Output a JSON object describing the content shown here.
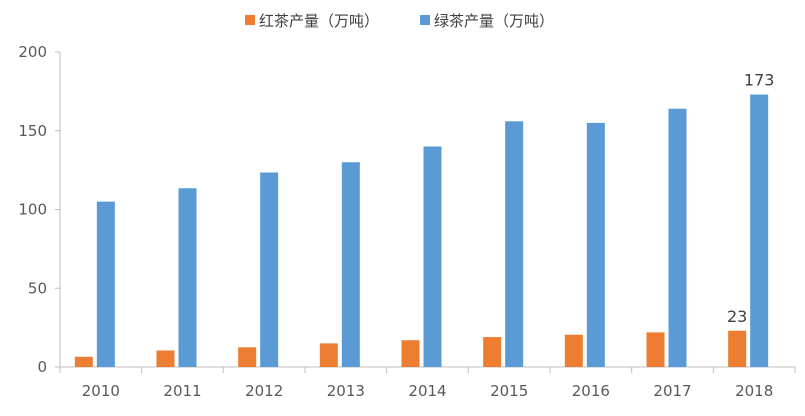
{
  "chart_data": {
    "type": "bar",
    "title": "",
    "xlabel": "",
    "ylabel": "",
    "categories": [
      "2010",
      "2011",
      "2012",
      "2013",
      "2014",
      "2015",
      "2016",
      "2017",
      "2018"
    ],
    "series": [
      {
        "name": "红茶产量（万吨）",
        "color": "#ED7D31",
        "values": [
          6.5,
          10.5,
          12.5,
          15,
          17,
          19,
          20.5,
          22,
          23
        ]
      },
      {
        "name": "绿茶产量（万吨）",
        "color": "#5B9BD5",
        "values": [
          105,
          113.5,
          123.5,
          130,
          140,
          156,
          155,
          164,
          173
        ]
      }
    ],
    "ylim": [
      0,
      200
    ],
    "yticks": [
      0,
      50,
      100,
      150,
      200
    ],
    "grid": false,
    "legend_position": "top-center",
    "data_labels": [
      {
        "series": 0,
        "category": "2018",
        "text": "23"
      },
      {
        "series": 1,
        "category": "2018",
        "text": "173"
      }
    ]
  }
}
